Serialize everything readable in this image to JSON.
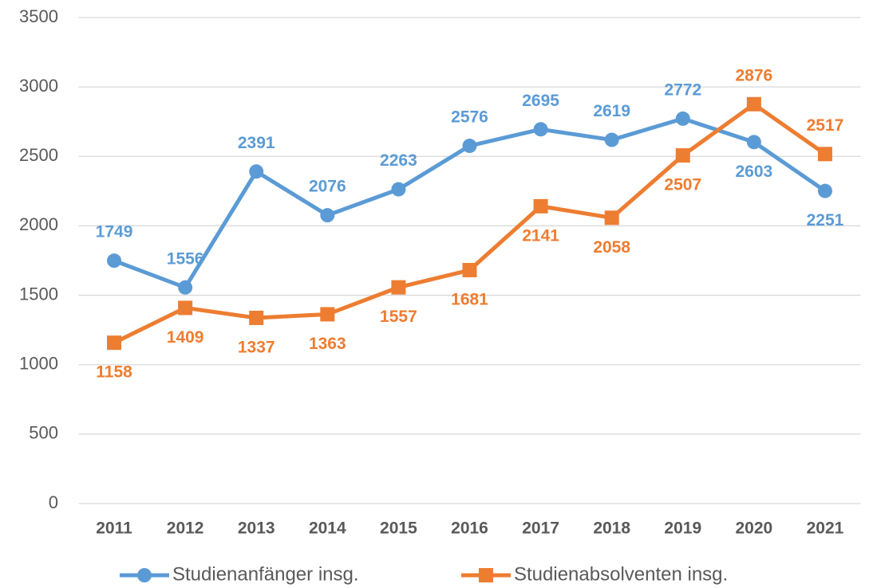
{
  "chart_data": {
    "type": "line",
    "categories": [
      "2011",
      "2012",
      "2013",
      "2014",
      "2015",
      "2016",
      "2017",
      "2018",
      "2019",
      "2020",
      "2021"
    ],
    "series": [
      {
        "name": "Studienanfänger insg.",
        "color": "#5b9bd5",
        "marker": "circle",
        "values": [
          1749,
          1556,
          2391,
          2076,
          2263,
          2576,
          2695,
          2619,
          2772,
          2603,
          2251
        ]
      },
      {
        "name": "Studienabsolventen insg.",
        "color": "#ed7d31",
        "marker": "square",
        "values": [
          1158,
          1409,
          1337,
          1363,
          1557,
          1681,
          2141,
          2058,
          2507,
          2876,
          2517
        ]
      }
    ],
    "ylim": [
      0,
      3500
    ],
    "yticks": [
      0,
      500,
      1000,
      1500,
      2000,
      2500,
      3000,
      3500
    ],
    "grid": true,
    "legend": "bottom"
  }
}
